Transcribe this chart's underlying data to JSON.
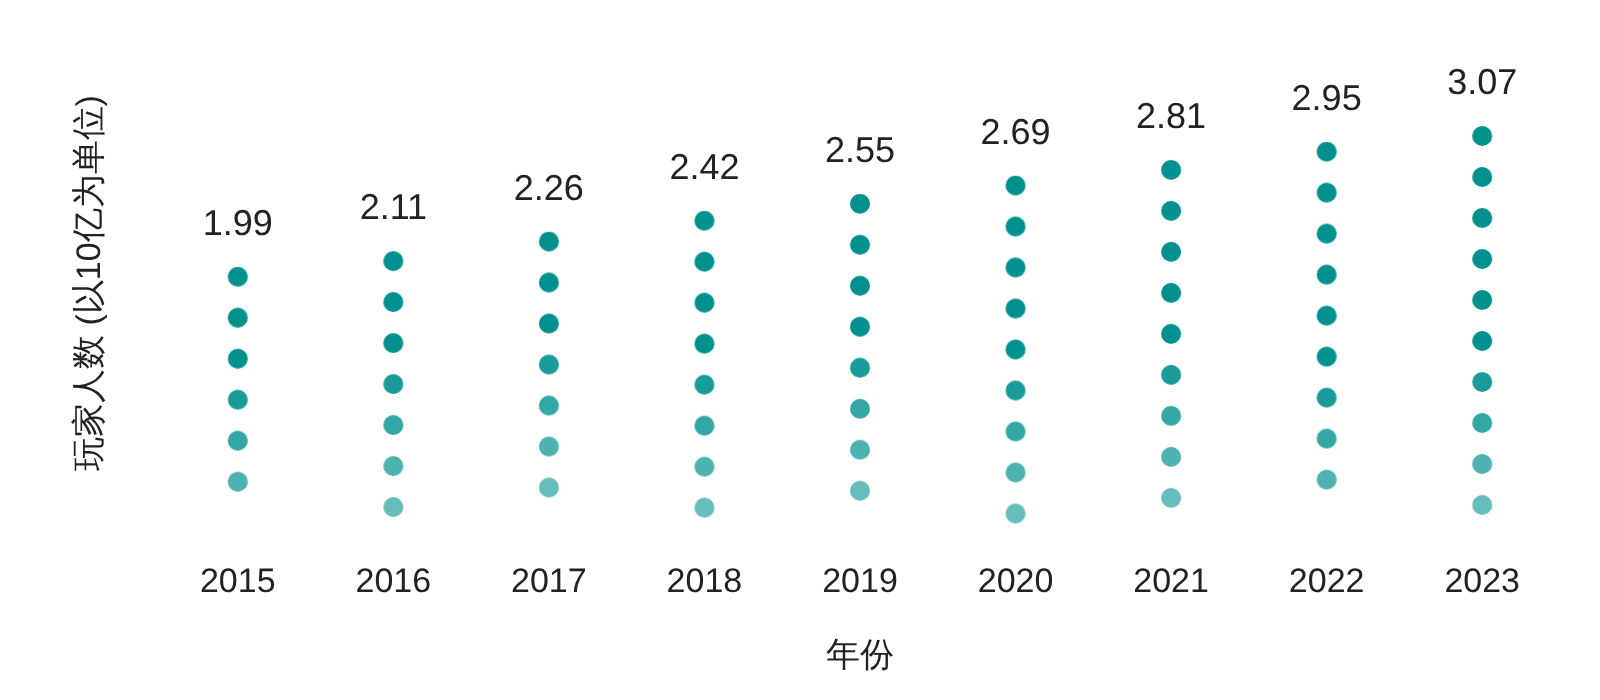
{
  "chart_data": {
    "type": "bar",
    "xlabel": "年份",
    "ylabel": "玩家人数 (以10亿为单位)",
    "categories": [
      "2015",
      "2016",
      "2017",
      "2018",
      "2019",
      "2020",
      "2021",
      "2022",
      "2023"
    ],
    "values": [
      1.99,
      2.11,
      2.26,
      2.42,
      2.55,
      2.69,
      2.81,
      2.95,
      3.07
    ],
    "color": "#00918e",
    "data_labels": true
  }
}
